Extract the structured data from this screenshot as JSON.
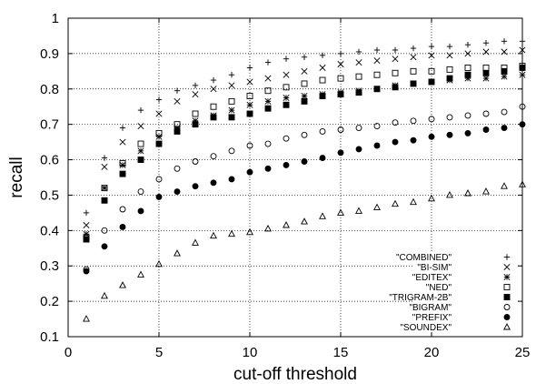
{
  "chart_data": {
    "type": "scatter",
    "title": "",
    "xlabel": "cut-off threshold",
    "ylabel": "recall",
    "xlim": [
      0,
      25
    ],
    "ylim": [
      0.1,
      1.0
    ],
    "xticks": [
      "0",
      "5",
      "10",
      "15",
      "20",
      "25"
    ],
    "yticks": [
      "0.1",
      "0.2",
      "0.3",
      "0.4",
      "0.5",
      "0.6",
      "0.7",
      "0.8",
      "0.9",
      "1"
    ],
    "grid": true,
    "grid_style": "dotted",
    "legend_position": "lower-right",
    "x": [
      1,
      2,
      3,
      4,
      5,
      6,
      7,
      8,
      9,
      10,
      11,
      12,
      13,
      14,
      15,
      16,
      17,
      18,
      19,
      20,
      21,
      22,
      23,
      24,
      25
    ],
    "series": [
      {
        "name": "\"COMBINED\"",
        "marker": "plus",
        "values": [
          0.45,
          0.605,
          0.69,
          0.74,
          0.77,
          0.795,
          0.81,
          0.825,
          0.84,
          0.86,
          0.875,
          0.885,
          0.89,
          0.895,
          0.9,
          0.905,
          0.91,
          0.91,
          0.915,
          0.92,
          0.92,
          0.925,
          0.93,
          0.935,
          0.935
        ]
      },
      {
        "name": "\"BI-SIM\"",
        "marker": "x",
        "values": [
          0.415,
          0.58,
          0.65,
          0.695,
          0.73,
          0.765,
          0.785,
          0.8,
          0.81,
          0.82,
          0.83,
          0.84,
          0.85,
          0.86,
          0.87,
          0.875,
          0.88,
          0.885,
          0.89,
          0.895,
          0.895,
          0.9,
          0.905,
          0.905,
          0.91
        ]
      },
      {
        "name": "\"EDITEX\"",
        "marker": "asterisk",
        "values": [
          0.39,
          0.52,
          0.585,
          0.625,
          0.665,
          0.69,
          0.71,
          0.725,
          0.74,
          0.755,
          0.765,
          0.775,
          0.78,
          0.785,
          0.79,
          0.795,
          0.8,
          0.81,
          0.815,
          0.82,
          0.825,
          0.83,
          0.83,
          0.835,
          0.84
        ]
      },
      {
        "name": "\"NED\"",
        "marker": "square-open",
        "values": [
          0.38,
          0.52,
          0.59,
          0.645,
          0.675,
          0.7,
          0.73,
          0.75,
          0.765,
          0.78,
          0.795,
          0.805,
          0.815,
          0.825,
          0.83,
          0.835,
          0.84,
          0.845,
          0.85,
          0.85,
          0.855,
          0.86,
          0.86,
          0.86,
          0.865
        ]
      },
      {
        "name": "\"TRIGRAM-2B\"",
        "marker": "square-filled",
        "values": [
          0.375,
          0.485,
          0.56,
          0.6,
          0.645,
          0.68,
          0.7,
          0.72,
          0.72,
          0.73,
          0.745,
          0.755,
          0.765,
          0.78,
          0.785,
          0.79,
          0.8,
          0.805,
          0.815,
          0.82,
          0.83,
          0.84,
          0.845,
          0.85,
          0.86
        ]
      },
      {
        "name": "\"BIGRAM\"",
        "marker": "circle-open",
        "values": [
          0.29,
          0.4,
          0.46,
          0.51,
          0.545,
          0.575,
          0.595,
          0.61,
          0.625,
          0.64,
          0.645,
          0.66,
          0.67,
          0.68,
          0.685,
          0.69,
          0.695,
          0.705,
          0.71,
          0.715,
          0.72,
          0.725,
          0.73,
          0.735,
          0.75
        ]
      },
      {
        "name": "\"PREFIX\"",
        "marker": "circle-filled",
        "values": [
          0.285,
          0.355,
          0.41,
          0.455,
          0.495,
          0.51,
          0.525,
          0.535,
          0.545,
          0.565,
          0.575,
          0.585,
          0.595,
          0.605,
          0.62,
          0.63,
          0.64,
          0.65,
          0.655,
          0.665,
          0.67,
          0.675,
          0.685,
          0.69,
          0.7
        ]
      },
      {
        "name": "\"SOUNDEX\"",
        "marker": "triangle-open",
        "values": [
          0.15,
          0.215,
          0.245,
          0.275,
          0.305,
          0.335,
          0.365,
          0.385,
          0.39,
          0.395,
          0.405,
          0.415,
          0.425,
          0.44,
          0.45,
          0.455,
          0.465,
          0.475,
          0.48,
          0.49,
          0.5,
          0.505,
          0.51,
          0.525,
          0.53
        ]
      }
    ]
  }
}
